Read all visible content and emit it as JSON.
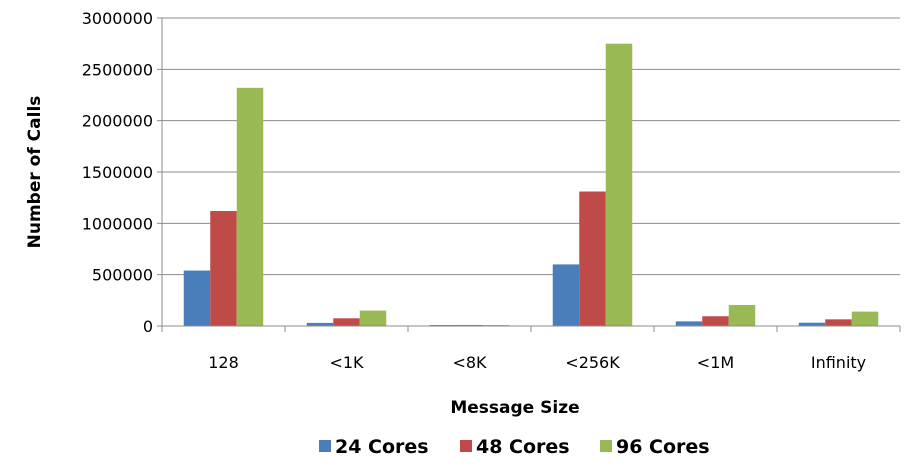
{
  "chart_data": {
    "type": "bar",
    "title": "",
    "xlabel": "Message Size",
    "ylabel": "Number of Calls",
    "categories": [
      "128",
      "<1K",
      "<8K",
      "<256K",
      "<1M",
      "Infinity"
    ],
    "series": [
      {
        "name": "24 Cores",
        "color": "#4a7ebb",
        "values": [
          540000,
          30000,
          8000,
          600000,
          45000,
          32000
        ]
      },
      {
        "name": "48 Cores",
        "color": "#be4b48",
        "values": [
          1120000,
          75000,
          10000,
          1310000,
          95000,
          65000
        ]
      },
      {
        "name": "96 Cores",
        "color": "#98b954",
        "values": [
          2320000,
          150000,
          10000,
          2750000,
          205000,
          140000
        ]
      }
    ],
    "ylim": [
      0,
      3000000
    ],
    "yticks": [
      "0",
      "500000",
      "1000000",
      "1500000",
      "2000000",
      "2500000",
      "3000000"
    ],
    "grid": true,
    "legend_position": "bottom"
  }
}
